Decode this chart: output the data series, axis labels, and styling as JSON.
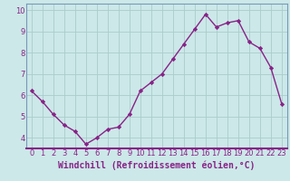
{
  "x": [
    0,
    1,
    2,
    3,
    4,
    5,
    6,
    7,
    8,
    9,
    10,
    11,
    12,
    13,
    14,
    15,
    16,
    17,
    18,
    19,
    20,
    21,
    22,
    23
  ],
  "y": [
    6.2,
    5.7,
    5.1,
    4.6,
    4.3,
    3.7,
    4.0,
    4.4,
    4.5,
    5.1,
    6.2,
    6.6,
    7.0,
    7.7,
    8.4,
    9.1,
    9.8,
    9.2,
    9.4,
    9.5,
    8.5,
    8.2,
    7.3,
    5.6
  ],
  "line_color": "#882288",
  "marker": "D",
  "marker_size": 2.2,
  "line_width": 1.0,
  "bg_color": "#cce8e8",
  "xlabel": "Windchill (Refroidissement éolien,°C)",
  "xlabel_fontsize": 7.0,
  "xlim": [
    -0.5,
    23.5
  ],
  "ylim": [
    3.5,
    10.3
  ],
  "yticks": [
    4,
    5,
    6,
    7,
    8,
    9,
    10
  ],
  "xticks": [
    0,
    1,
    2,
    3,
    4,
    5,
    6,
    7,
    8,
    9,
    10,
    11,
    12,
    13,
    14,
    15,
    16,
    17,
    18,
    19,
    20,
    21,
    22,
    23
  ],
  "grid_color": "#aacccc",
  "tick_fontsize": 6.0,
  "spine_color": "#7799bb"
}
